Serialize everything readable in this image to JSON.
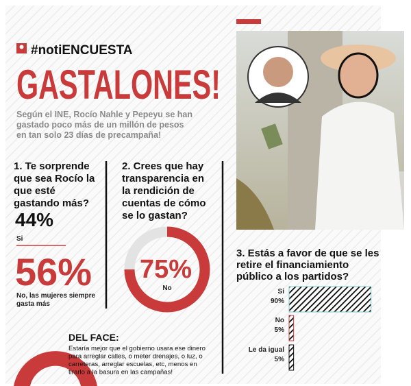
{
  "header": {
    "hashtag": "#notiENCUESTA",
    "title": "GASTALONES!",
    "subtitle_lines": [
      "Según el INE, Rocío Nahle y Pepeyu se han",
      "gastado poco más de un millón de pesos",
      "en tan solo 23 días de precampaña!"
    ]
  },
  "q1": {
    "question_lines": [
      "1. Te sorprende",
      "que sea Rocío la",
      "que esté",
      "gastando más?"
    ],
    "yes_label": "44%",
    "yes_text": "Si",
    "no_label": "56%",
    "no_text_lines": [
      "No, las mujeres siempre",
      "gasta más"
    ]
  },
  "q2": {
    "question_lines": [
      "2. Crees que hay",
      "transparencia en",
      "la rendición de",
      "cuentas de cómo",
      "se lo gastan?"
    ],
    "value": 75,
    "value_label": "75%",
    "answer": "No"
  },
  "q3": {
    "question_lines": [
      "3. Estás a favor de que se les",
      "retire el financiamiento",
      "público a los partidos?"
    ],
    "categories": [
      "Si",
      "No",
      "Le da igual"
    ],
    "values": [
      90,
      5,
      5
    ],
    "value_labels": [
      "90%",
      "5%",
      "5%"
    ],
    "colors": [
      "#7cc6c6",
      "#c93b3b",
      "#111111"
    ]
  },
  "comment": {
    "heading": "DEL FACE:",
    "lines": [
      "Estaría mejor que el gobierno usara ese dinero",
      "para arreglar calles, o meter drenajes, o luz, o",
      "carreteras, arreglar escuelas, etc, menos en",
      "tirarlo a la basura en las campañas!"
    ]
  }
}
